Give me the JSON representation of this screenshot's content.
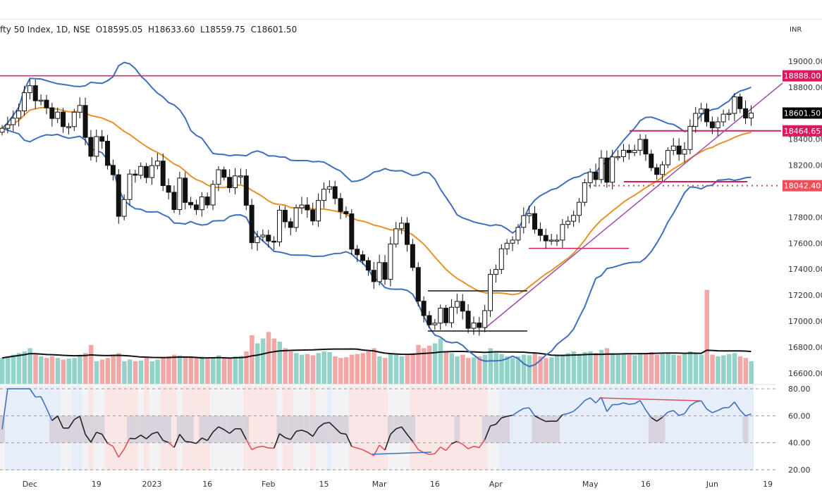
{
  "header": {
    "symbol": "fty 50 Index, 1D, NSE",
    "open": "O18595.05",
    "high": "H18633.60",
    "low": "L18559.75",
    "close": "C18601.50",
    "currency": "INR"
  },
  "chart_data": {
    "type": "candlestick",
    "title": "",
    "price_ticks": [
      "19000.00",
      "18800.00",
      "18400.00",
      "18200.00",
      "17800.00",
      "17600.00",
      "17400.00",
      "17200.00",
      "17000.00",
      "16800.00",
      "16600.00"
    ],
    "price_tick_values": [
      19000,
      18800,
      18400,
      18200,
      17800,
      17600,
      17400,
      17200,
      17000,
      16800,
      16600
    ],
    "rsi_ticks": [
      "80.00",
      "60.00",
      "40.00",
      "20.00"
    ],
    "rsi_tick_values": [
      80,
      60,
      40,
      20
    ],
    "x_labels": [
      {
        "label": "Dec",
        "index": 5
      },
      {
        "label": "19",
        "index": 17
      },
      {
        "label": "2023",
        "index": 27
      },
      {
        "label": "16",
        "index": 37
      },
      {
        "label": "Feb",
        "index": 48
      },
      {
        "label": "15",
        "index": 58
      },
      {
        "label": "Mar",
        "index": 68
      },
      {
        "label": "16",
        "index": 78
      },
      {
        "label": "Apr",
        "index": 89
      },
      {
        "label": "May",
        "index": 106
      },
      {
        "label": "16",
        "index": 116
      },
      {
        "label": "Jun",
        "index": 128
      },
      {
        "label": "19",
        "index": 138
      }
    ],
    "price_labels": [
      {
        "value": 18888.0,
        "text": "18888.00",
        "color": "#d81b60"
      },
      {
        "value": 18601.5,
        "text": "18601.50",
        "color": "#000000"
      },
      {
        "value": 18464.65,
        "text": "18464.65",
        "color": "#d81b60"
      },
      {
        "value": 18042.4,
        "text": "18042.40",
        "color": "#ef4f5a"
      }
    ],
    "close": [
      18484,
      18512,
      18562,
      18618,
      18758,
      18812,
      18696,
      18701,
      18642,
      18560,
      18609,
      18497,
      18497,
      18608,
      18660,
      18414,
      18269,
      18420,
      18385,
      18199,
      18127,
      17807,
      17936,
      18132,
      18123,
      18191,
      18105,
      18197,
      18232,
      18043,
      17992,
      17859,
      18101,
      17914,
      17895,
      17858,
      17956,
      17894,
      18053,
      18165,
      18107,
      18027,
      18118,
      18118,
      17892,
      17604,
      17649,
      17662,
      17616,
      17610,
      17854,
      17765,
      17721,
      17872,
      17894,
      17856,
      17771,
      17929,
      18016,
      18035,
      17944,
      17844,
      17826,
      17554,
      17511,
      17466,
      17392,
      17304,
      17451,
      17322,
      17594,
      17711,
      17754,
      17590,
      17413,
      17154,
      17043,
      16972,
      16985,
      17100,
      16988,
      17107,
      17152,
      17077,
      16945,
      16986,
      16951,
      17081,
      17360,
      17398,
      17557,
      17600,
      17624,
      17722,
      17812,
      17828,
      17707,
      17660,
      17618,
      17624,
      17624,
      17744,
      17769,
      17814,
      17915,
      18065,
      18148,
      18090,
      18256,
      18069,
      18264,
      18266,
      18315,
      18297,
      18315,
      18399,
      18286,
      18181,
      18129,
      18203,
      18314,
      18348,
      18285,
      18321,
      18499,
      18599,
      18633,
      18534,
      18488,
      18534,
      18593,
      18599,
      18726,
      18635,
      18563,
      18601.5
    ],
    "volume": [
      80,
      85,
      90,
      95,
      100,
      110,
      90,
      85,
      80,
      85,
      80,
      75,
      78,
      80,
      90,
      95,
      120,
      70,
      75,
      80,
      90,
      95,
      70,
      75,
      70,
      72,
      80,
      70,
      75,
      80,
      85,
      90,
      88,
      82,
      85,
      80,
      84,
      78,
      82,
      88,
      80,
      78,
      85,
      86,
      100,
      150,
      125,
      140,
      160,
      140,
      130,
      110,
      100,
      95,
      90,
      92,
      88,
      95,
      100,
      98,
      85,
      80,
      82,
      90,
      92,
      95,
      100,
      110,
      85,
      80,
      95,
      90,
      85,
      88,
      95,
      120,
      110,
      118,
      125,
      140,
      100,
      95,
      85,
      90,
      80,
      82,
      85,
      90,
      110,
      95,
      92,
      85,
      80,
      85,
      90,
      88,
      95,
      85,
      80,
      82,
      88,
      90,
      95,
      100,
      92,
      98,
      100,
      95,
      105,
      110,
      95,
      90,
      92,
      90,
      88,
      95,
      92,
      98,
      90,
      92,
      95,
      90,
      88,
      92,
      100,
      95,
      90,
      290,
      90,
      85,
      88,
      92,
      95,
      85,
      80,
      70
    ],
    "indicators": {
      "sma": 20,
      "bollinger": [
        20,
        2
      ],
      "volume_ma": 20,
      "rsi": 14
    },
    "levels": {
      "resistance": 18888.0,
      "support_1": 18464.65,
      "support_2": 18042.4
    },
    "colors": {
      "up_volume": "#93d2c8",
      "down_volume": "#f2a7a7",
      "bollinger": "#3f6fbf",
      "sma": "#e8902a",
      "trendline": "#9c4fa8",
      "level": "#d81b60"
    }
  }
}
